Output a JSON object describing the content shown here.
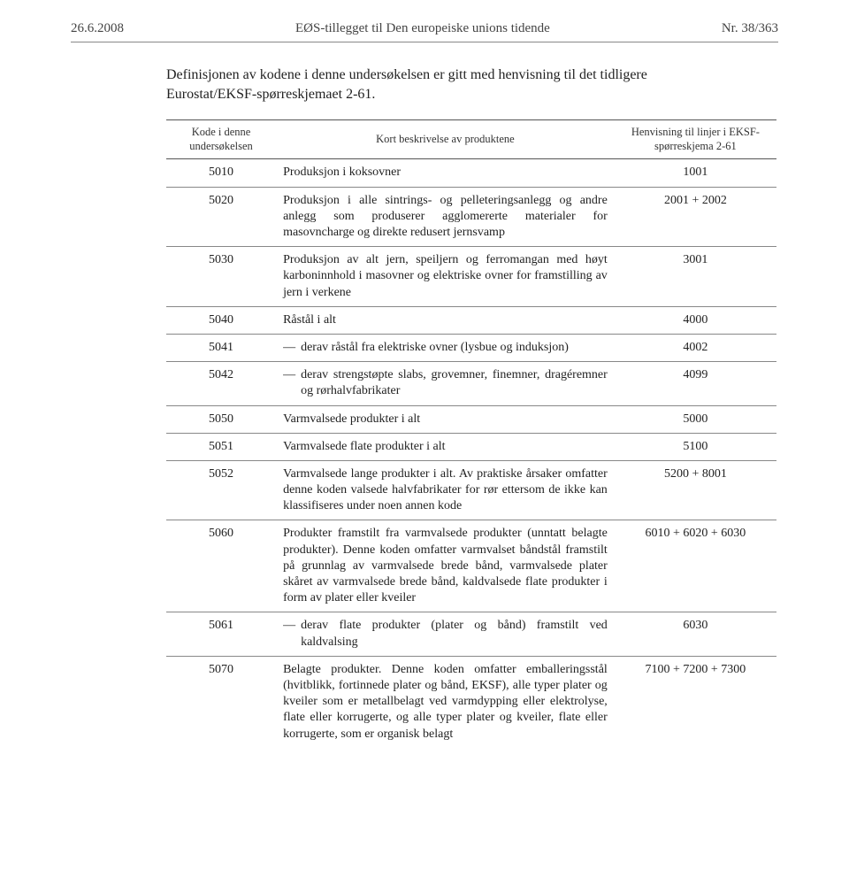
{
  "header": {
    "date": "26.6.2008",
    "title": "EØS-tillegget til Den europeiske unions tidende",
    "pageno": "Nr. 38/363"
  },
  "intro": "Definisjonen av kodene i denne undersøkelsen er gitt med henvisning til det tidligere Eurostat/EKSF-spørreskjemaet 2-61.",
  "table": {
    "headers": {
      "code": "Kode i denne undersøkelsen",
      "desc": "Kort beskrivelse av produktene",
      "ref": "Henvisning til linjer i EKSF-spørreskjema 2-61"
    },
    "rows": [
      {
        "code": "5010",
        "desc": "Produksjon i koksovner",
        "ref": "1001",
        "sub": false
      },
      {
        "code": "5020",
        "desc": "Produksjon i alle sintrings- og pelleteringsanlegg og andre anlegg som produserer agglomererte materialer for masovncharge og direkte redusert jernsvamp",
        "ref": "2001 + 2002",
        "sub": false
      },
      {
        "code": "5030",
        "desc": "Produksjon av alt jern, speiljern og ferromangan med høyt karboninnhold i masovner og elektriske ovner for framstilling av jern i verkene",
        "ref": "3001",
        "sub": false
      },
      {
        "code": "5040",
        "desc": "Råstål i alt",
        "ref": "4000",
        "sub": false
      },
      {
        "code": "5041",
        "desc": "derav råstål fra elektriske ovner (lysbue og induksjon)",
        "ref": "4002",
        "sub": true
      },
      {
        "code": "5042",
        "desc": "derav strengstøpte slabs, grovemner, finemner, dragéremner og rørhalvfabrikater",
        "ref": "4099",
        "sub": true
      },
      {
        "code": "5050",
        "desc": "Varmvalsede produkter i alt",
        "ref": "5000",
        "sub": false
      },
      {
        "code": "5051",
        "desc": "Varmvalsede flate produkter i alt",
        "ref": "5100",
        "sub": false
      },
      {
        "code": "5052",
        "desc": "Varmvalsede lange produkter i alt. Av praktiske årsaker omfatter denne koden valsede halvfabrikater for rør ettersom de ikke kan klassifiseres under noen annen kode",
        "ref": "5200 + 8001",
        "sub": false
      },
      {
        "code": "5060",
        "desc": "Produkter framstilt fra varmvalsede produkter (unntatt belagte produkter). Denne koden omfatter varmvalset båndstål framstilt på grunnlag av varmvalsede brede bånd, varmvalsede plater skåret av varmvalsede brede bånd, kaldvalsede flate produkter i form av plater eller kveiler",
        "ref": "6010 + 6020 + 6030",
        "sub": false
      },
      {
        "code": "5061",
        "desc": "derav flate produkter (plater og bånd) framstilt ved kaldvalsing",
        "ref": "6030",
        "sub": true
      },
      {
        "code": "5070",
        "desc": "Belagte produkter. Denne koden omfatter emballeringsstål (hvitblikk, fortinnede plater og bånd, EKSF), alle typer plater og kveiler som er metallbelagt ved varmdypping eller elektrolyse, flate eller korrugerte, og alle typer plater og kveiler, flate eller korrugerte, som er organisk belagt",
        "ref": "7100 + 7200 + 7300",
        "sub": false
      }
    ]
  }
}
